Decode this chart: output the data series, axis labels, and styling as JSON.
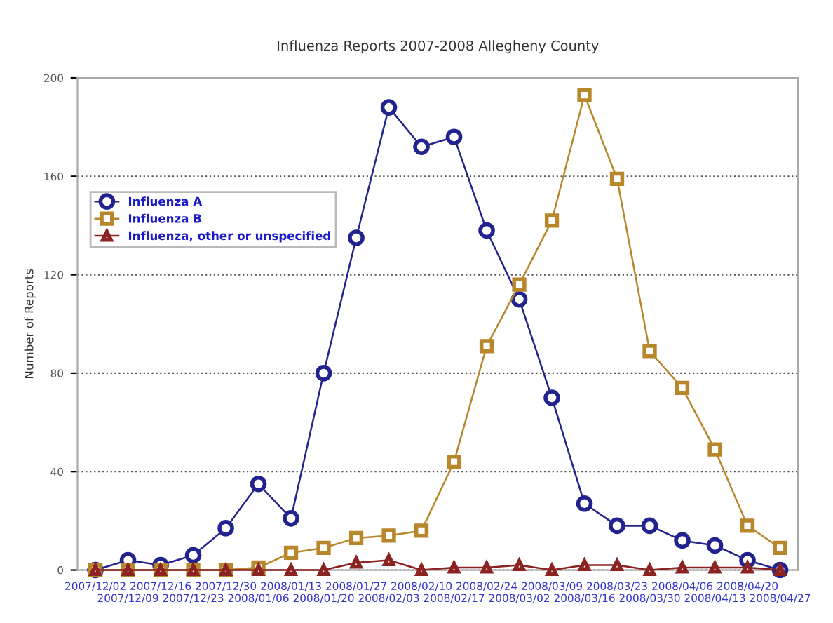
{
  "chart_data": {
    "type": "line",
    "title": "Influenza Reports 2007-2008 Allegheny County",
    "ylabel": "Number of Reports",
    "categories": [
      "2007/12/02",
      "2007/12/09",
      "2007/12/16",
      "2007/12/23",
      "2007/12/30",
      "2008/01/06",
      "2008/01/13",
      "2008/01/20",
      "2008/01/27",
      "2008/02/03",
      "2008/02/10",
      "2008/02/17",
      "2008/02/24",
      "2008/03/02",
      "2008/03/09",
      "2008/03/16",
      "2008/03/23",
      "2008/03/30",
      "2008/04/06",
      "2008/04/13",
      "2008/04/20",
      "2008/04/27"
    ],
    "series": [
      {
        "name": "Influenza A",
        "color": "#23238f",
        "marker": "circle",
        "values": [
          0,
          4,
          2,
          6,
          17,
          35,
          21,
          80,
          135,
          188,
          172,
          176,
          138,
          110,
          70,
          27,
          18,
          18,
          12,
          10,
          4,
          0
        ]
      },
      {
        "name": "Influenza B",
        "color": "#b8862b",
        "marker": "square",
        "values": [
          0,
          0,
          0,
          0,
          0,
          1,
          7,
          9,
          13,
          14,
          16,
          44,
          91,
          116,
          142,
          193,
          159,
          89,
          74,
          49,
          18,
          9
        ]
      },
      {
        "name": "Influenza, other or unspecified",
        "color": "#8b2323",
        "marker": "triangle",
        "values": [
          0,
          0,
          0,
          0,
          0,
          0,
          0,
          0,
          3,
          4,
          0,
          1,
          1,
          2,
          0,
          2,
          2,
          0,
          1,
          1,
          1,
          0
        ]
      }
    ],
    "ylim": [
      0,
      200
    ],
    "yticks": [
      0,
      40,
      80,
      120,
      160,
      200
    ],
    "grid": "y",
    "legend": "top left",
    "line_style": "solid"
  }
}
